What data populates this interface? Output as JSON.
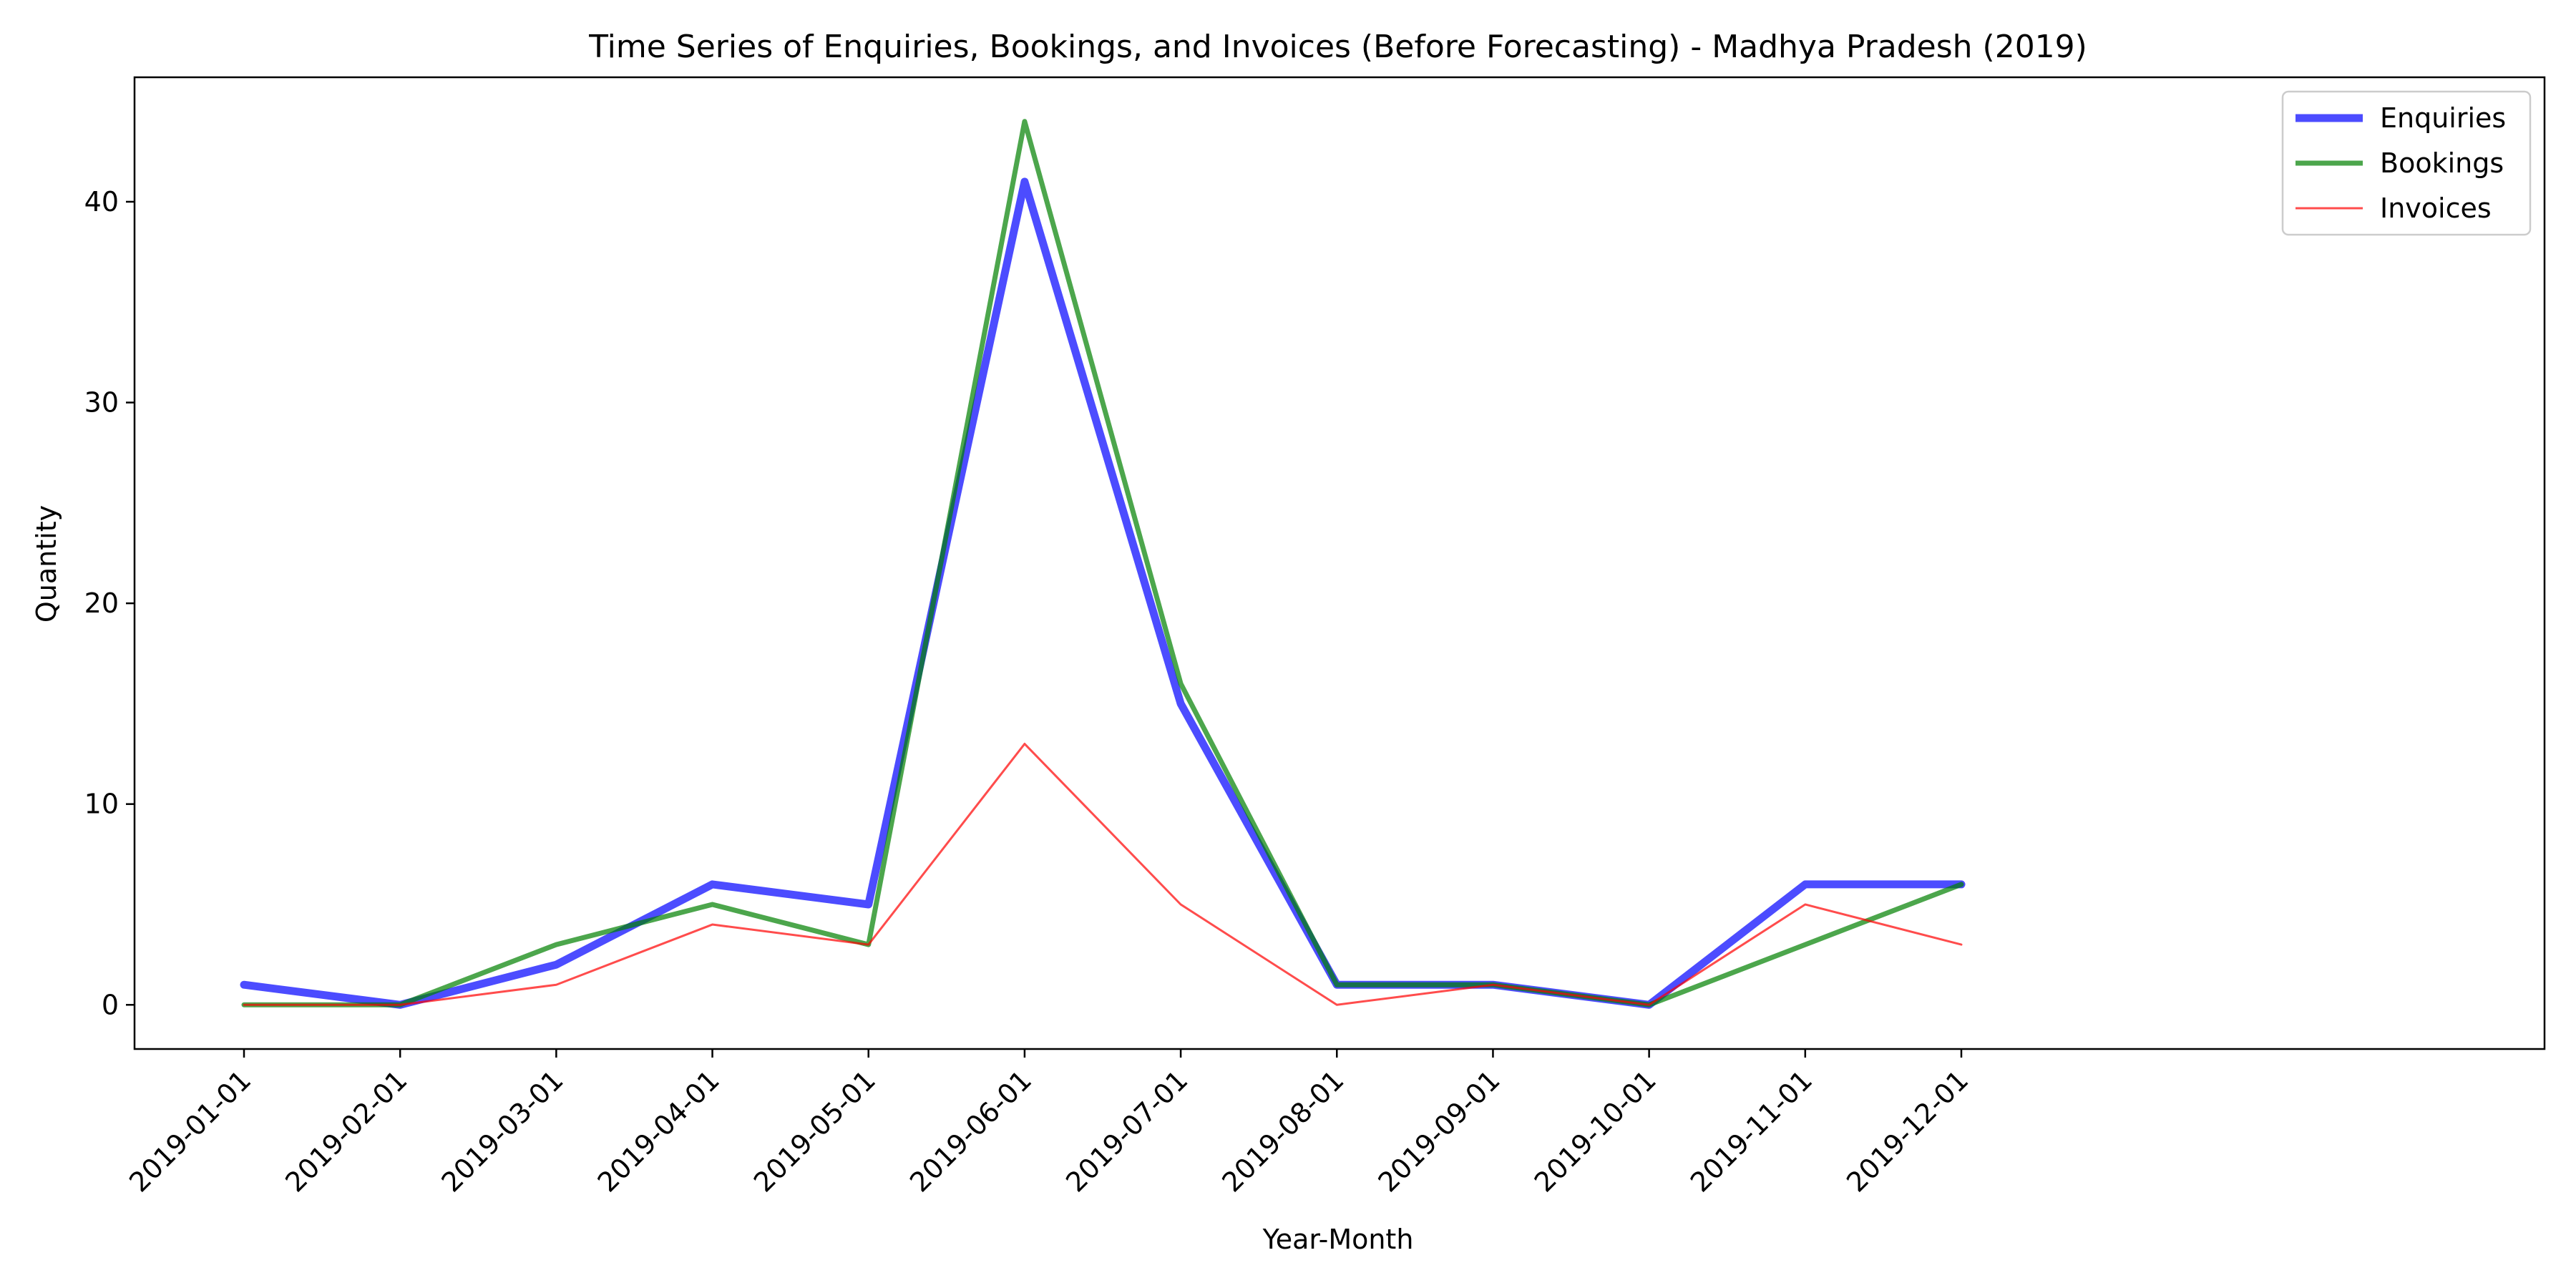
{
  "chart_data": {
    "type": "line",
    "title": "Time Series of Enquiries, Bookings, and Invoices (Before Forecasting) - Madhya Pradesh (2019)",
    "xlabel": "Year-Month",
    "ylabel": "Quantity",
    "categories": [
      "2019-01-01",
      "2019-02-01",
      "2019-03-01",
      "2019-04-01",
      "2019-05-01",
      "2019-06-01",
      "2019-07-01",
      "2019-08-01",
      "2019-09-01",
      "2019-10-01",
      "2019-11-01",
      "2019-12-01"
    ],
    "ylim": [
      -2.2,
      46.2
    ],
    "yticks": [
      0,
      10,
      20,
      30,
      40
    ],
    "grid": false,
    "legend_position": "top-right",
    "series": [
      {
        "name": "Enquiries",
        "color": "#0000ff",
        "values": [
          1,
          0,
          2,
          6,
          5,
          41,
          15,
          1,
          1,
          0,
          6,
          6
        ]
      },
      {
        "name": "Bookings",
        "color": "#008000",
        "values": [
          0,
          0,
          3,
          5,
          3,
          44,
          16,
          1,
          1,
          0,
          3,
          6
        ]
      },
      {
        "name": "Invoices",
        "color": "#ff0000",
        "values": [
          0,
          0,
          1,
          4,
          3,
          13,
          5,
          0,
          1,
          0,
          5,
          3
        ]
      }
    ]
  }
}
